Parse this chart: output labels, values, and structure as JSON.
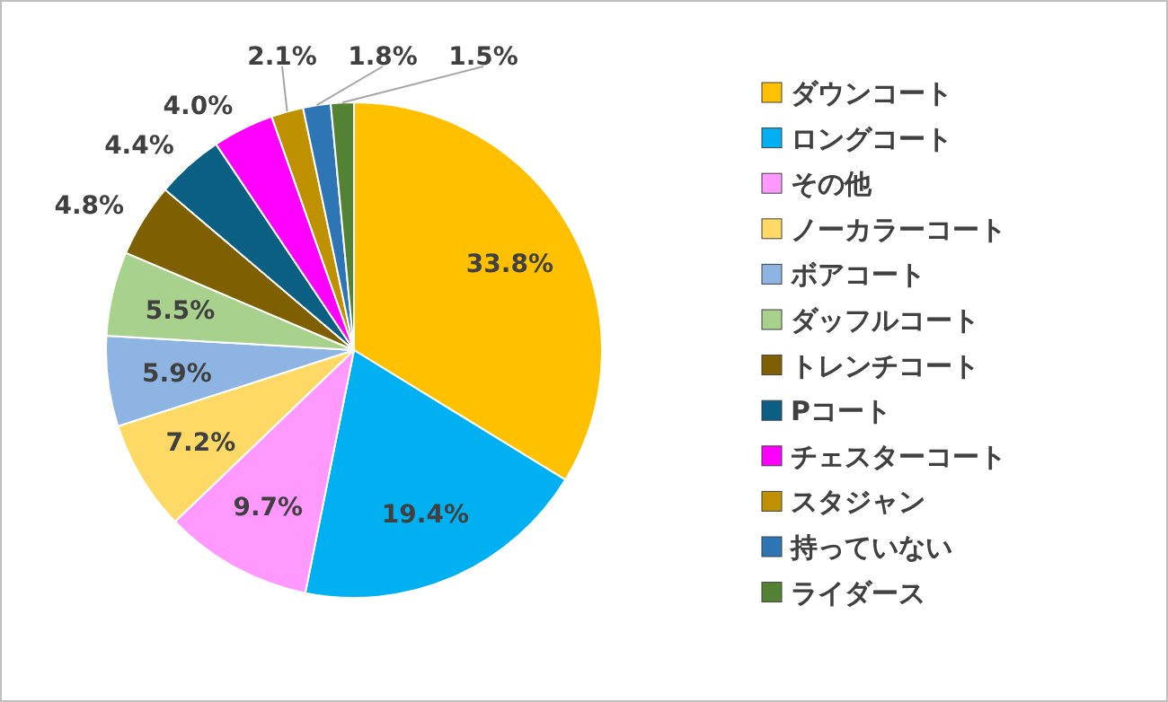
{
  "chart_data": {
    "type": "pie",
    "categories": [
      "ダウンコート",
      "ロングコート",
      "その他",
      "ノーカラーコート",
      "ボアコート",
      "ダッフルコート",
      "トレンチコート",
      "Pコート",
      "チェスターコート",
      "スタジャン",
      "持っていない",
      "ライダース"
    ],
    "values": [
      33.8,
      19.4,
      9.7,
      7.2,
      5.9,
      5.5,
      4.8,
      4.4,
      4.0,
      2.1,
      1.8,
      1.5
    ],
    "colors": [
      "#ffc000",
      "#00b0f0",
      "#ff99ff",
      "#ffd966",
      "#8db4e2",
      "#a9d18e",
      "#7f6000",
      "#0b5f82",
      "#ff00ff",
      "#bf9000",
      "#2e75b6",
      "#548235"
    ],
    "value_labels": [
      "33.8%",
      "19.4%",
      "9.7%",
      "7.2%",
      "5.9%",
      "5.5%",
      "4.8%",
      "4.4%",
      "4.0%",
      "2.1%",
      "1.8%",
      "1.5%"
    ],
    "legend": "right"
  }
}
